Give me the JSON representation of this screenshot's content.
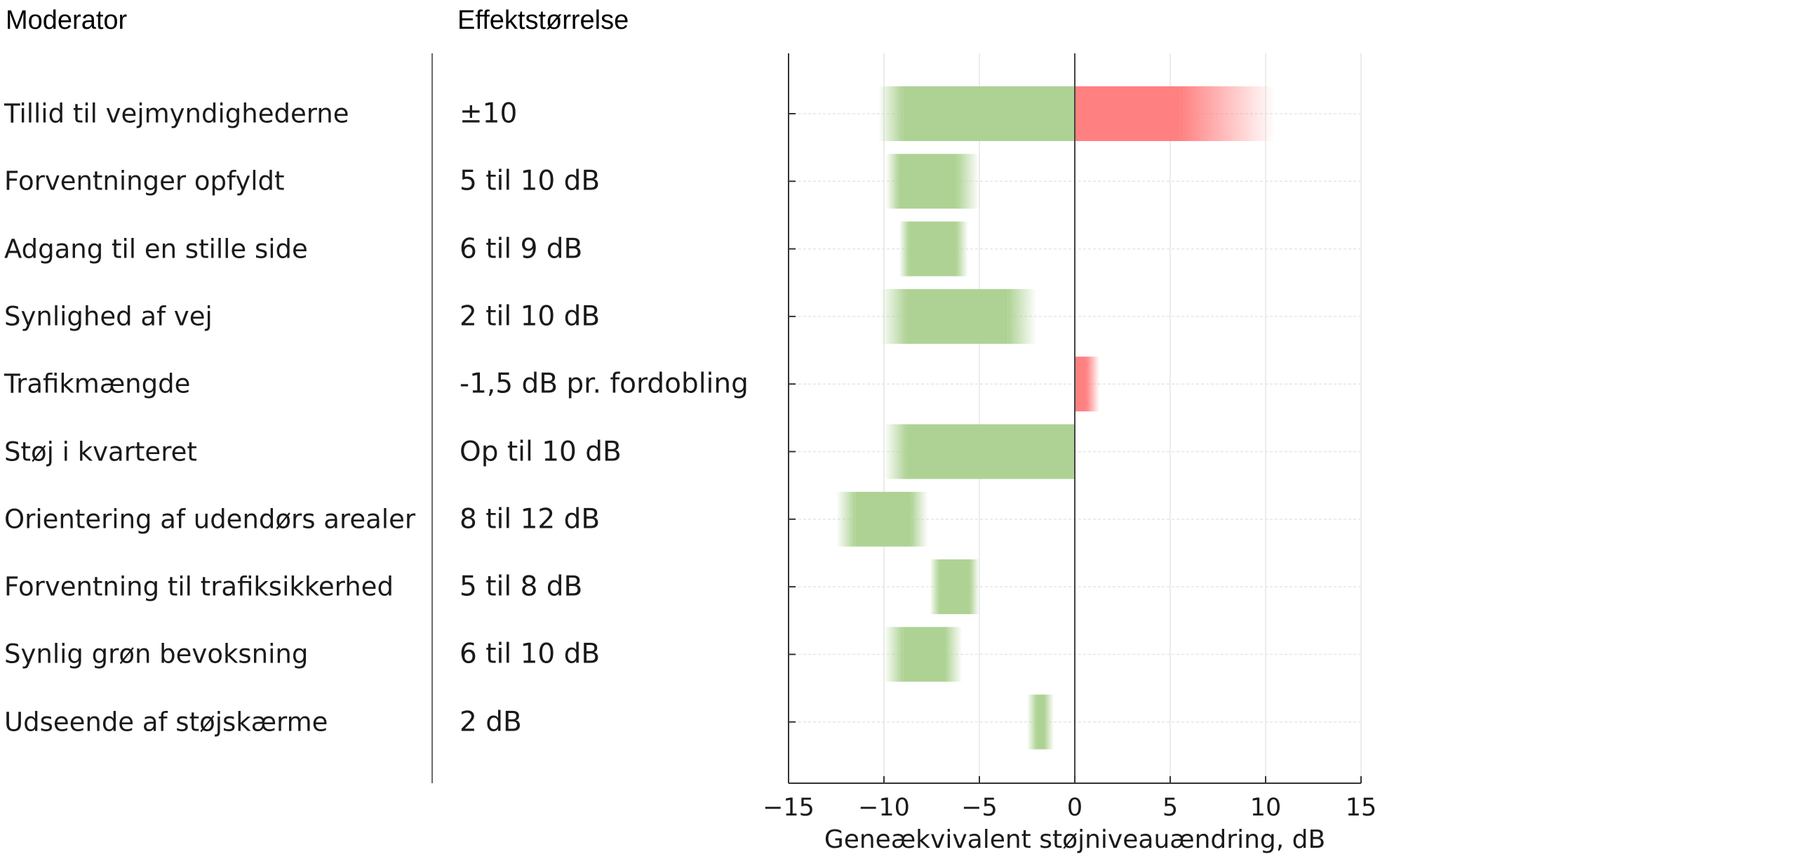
{
  "headers": {
    "moderator": "Moderator",
    "effect": "Effektstørrelse"
  },
  "rows": [
    {
      "label": "Tillid til vejmyndighederne",
      "effect": "±10"
    },
    {
      "label": "Forventninger opfyldt",
      "effect": "5 til 10 dB"
    },
    {
      "label": "Adgang til en stille side",
      "effect": "6 til 9 dB"
    },
    {
      "label": "Synlighed af vej",
      "effect": "2 til 10 dB"
    },
    {
      "label": "Trafikmængde",
      "effect": "-1,5 dB pr. fordobling"
    },
    {
      "label": "Støj i kvarteret",
      "effect": "Op til 10 dB"
    },
    {
      "label": "Orientering af udendørs arealer",
      "effect": "8 til 12 dB"
    },
    {
      "label": "Forventning til trafiksikkerhed",
      "effect": "5 til 8 dB"
    },
    {
      "label": "Synlig grøn bevoksning",
      "effect": "6 til 10 dB"
    },
    {
      "label": "Udseende af støjskærme",
      "effect": "2 dB"
    }
  ],
  "chart_data": {
    "type": "bar",
    "orientation": "horizontal",
    "xlabel": "Geneækvivalent støjniveauændring, dB",
    "xlim": [
      -15,
      15
    ],
    "xticks": [
      -15,
      -10,
      -5,
      0,
      5,
      10,
      15
    ],
    "xtick_labels": [
      "−15",
      "−10",
      "−5",
      "0",
      "5",
      "10",
      "15"
    ],
    "grid": true,
    "categories": [
      "Tillid til vejmyndighederne",
      "Forventninger opfyldt",
      "Adgang til en stille side",
      "Synlighed af vej",
      "Trafikmængde",
      "Støj i kvarteret",
      "Orientering af udendørs arealer",
      "Forventning til trafiksikkerhed",
      "Synlig grøn bevoksning",
      "Udseende af støjskærme"
    ],
    "bars": [
      {
        "category": "Tillid til vejmyndighederne",
        "segments": [
          {
            "from": -10.3,
            "to": -9.0,
            "fade": "left",
            "color": "#aed294"
          },
          {
            "from": -9.0,
            "to": 0,
            "fade": "none",
            "color": "#aed294"
          },
          {
            "from": 0,
            "to": 5.5,
            "fade": "none",
            "color": "#ff8080"
          },
          {
            "from": 5.5,
            "to": 10.5,
            "fade": "right",
            "color": "#ff8080"
          }
        ]
      },
      {
        "category": "Forventninger opfyldt",
        "segments": [
          {
            "from": -9.9,
            "to": -9.2,
            "fade": "left",
            "color": "#aed294"
          },
          {
            "from": -9.2,
            "to": -6.2,
            "fade": "none",
            "color": "#aed294"
          },
          {
            "from": -6.2,
            "to": -5.0,
            "fade": "right",
            "color": "#aed294"
          }
        ]
      },
      {
        "category": "Adgang til en stille side",
        "segments": [
          {
            "from": -9.2,
            "to": -8.7,
            "fade": "left",
            "color": "#aed294"
          },
          {
            "from": -8.7,
            "to": -6.2,
            "fade": "none",
            "color": "#aed294"
          },
          {
            "from": -6.2,
            "to": -5.6,
            "fade": "right",
            "color": "#aed294"
          }
        ]
      },
      {
        "category": "Synlighed af vej",
        "segments": [
          {
            "from": -10.2,
            "to": -8.8,
            "fade": "left",
            "color": "#aed294"
          },
          {
            "from": -8.8,
            "to": -3.5,
            "fade": "none",
            "color": "#aed294"
          },
          {
            "from": -3.5,
            "to": -2.0,
            "fade": "right",
            "color": "#aed294"
          }
        ]
      },
      {
        "category": "Trafikmængde",
        "segments": [
          {
            "from": 0,
            "to": 0.6,
            "fade": "none",
            "color": "#ff8080"
          },
          {
            "from": 0.6,
            "to": 1.3,
            "fade": "right",
            "color": "#ff8080"
          }
        ]
      },
      {
        "category": "Støj i kvarteret",
        "segments": [
          {
            "from": -10.0,
            "to": -8.8,
            "fade": "left",
            "color": "#aed294"
          },
          {
            "from": -8.8,
            "to": 0,
            "fade": "none",
            "color": "#aed294"
          }
        ]
      },
      {
        "category": "Orientering af udendørs arealer",
        "segments": [
          {
            "from": -12.5,
            "to": -11.5,
            "fade": "left",
            "color": "#aed294"
          },
          {
            "from": -11.5,
            "to": -8.6,
            "fade": "none",
            "color": "#aed294"
          },
          {
            "from": -8.6,
            "to": -7.7,
            "fade": "right",
            "color": "#aed294"
          }
        ]
      },
      {
        "category": "Forventning til trafiksikkerhed",
        "segments": [
          {
            "from": -7.6,
            "to": -7.1,
            "fade": "left",
            "color": "#aed294"
          },
          {
            "from": -7.1,
            "to": -5.5,
            "fade": "none",
            "color": "#aed294"
          },
          {
            "from": -5.5,
            "to": -5.0,
            "fade": "right",
            "color": "#aed294"
          }
        ]
      },
      {
        "category": "Synlig grøn bevoksning",
        "segments": [
          {
            "from": -10.0,
            "to": -9.0,
            "fade": "left",
            "color": "#aed294"
          },
          {
            "from": -9.0,
            "to": -6.8,
            "fade": "none",
            "color": "#aed294"
          },
          {
            "from": -6.8,
            "to": -5.9,
            "fade": "right",
            "color": "#aed294"
          }
        ]
      },
      {
        "category": "Udseende af støjskærme",
        "segments": [
          {
            "from": -2.5,
            "to": -2.0,
            "fade": "left",
            "color": "#aed294"
          },
          {
            "from": -2.0,
            "to": -1.6,
            "fade": "none",
            "color": "#aed294"
          },
          {
            "from": -1.6,
            "to": -1.1,
            "fade": "right",
            "color": "#aed294"
          }
        ]
      }
    ]
  }
}
